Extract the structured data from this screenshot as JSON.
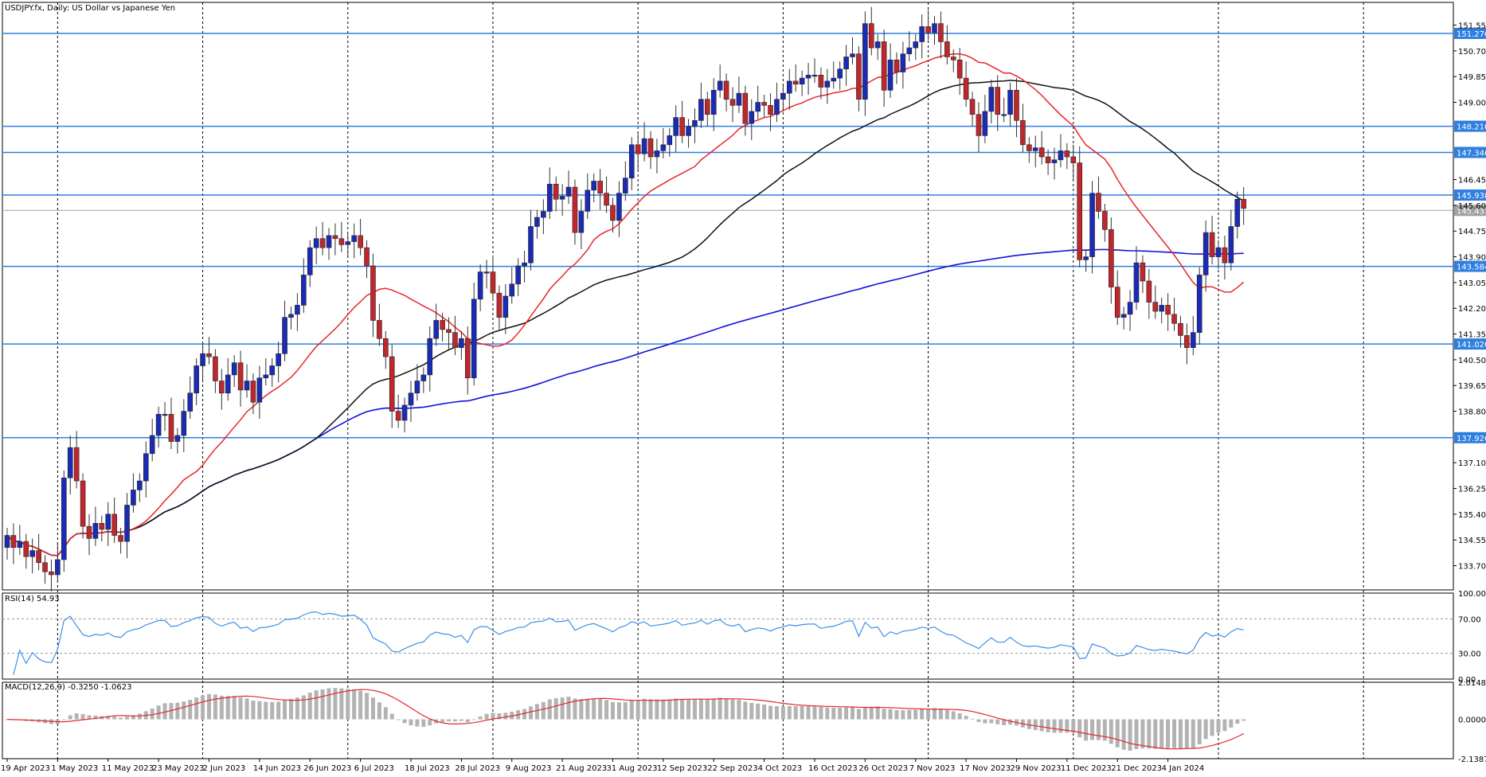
{
  "header": {
    "symbol_line": "USDJPY.fx, Daily:  US Dollar vs Japanese Yen"
  },
  "chart_data": {
    "type": "candlestick",
    "symbol": "USDJPY.fx",
    "timeframe": "Daily",
    "description": "US Dollar vs Japanese Yen",
    "price_axis": {
      "ylim": [
        132.9,
        152.3
      ],
      "ticks": [
        "151.550",
        "150.700",
        "149.850",
        "149.000",
        "146.450",
        "145.600",
        "144.750",
        "143.900",
        "143.050",
        "142.200",
        "141.350",
        "140.500",
        "139.650",
        "138.800",
        "137.100",
        "136.250",
        "135.400",
        "134.550",
        "133.700"
      ]
    },
    "x_axis": {
      "ticks": [
        {
          "label": "19 Apr 2023",
          "index": 0
        },
        {
          "label": "1 May 2023",
          "index": 8
        },
        {
          "label": "11 May 2023",
          "index": 16
        },
        {
          "label": "23 May 2023",
          "index": 24
        },
        {
          "label": "2 Jun 2023",
          "index": 32
        },
        {
          "label": "14 Jun 2023",
          "index": 40
        },
        {
          "label": "26 Jun 2023",
          "index": 48
        },
        {
          "label": "6 Jul 2023",
          "index": 56
        },
        {
          "label": "18 Jul 2023",
          "index": 64
        },
        {
          "label": "28 Jul 2023",
          "index": 72
        },
        {
          "label": "9 Aug 2023",
          "index": 80
        },
        {
          "label": "21 Aug 2023",
          "index": 88
        },
        {
          "label": "31 Aug 2023",
          "index": 96
        },
        {
          "label": "12 Sep 2023",
          "index": 104
        },
        {
          "label": "22 Sep 2023",
          "index": 112
        },
        {
          "label": "4 Oct 2023",
          "index": 120
        },
        {
          "label": "16 Oct 2023",
          "index": 128
        },
        {
          "label": "26 Oct 2023",
          "index": 136
        },
        {
          "label": "7 Nov 2023",
          "index": 144
        },
        {
          "label": "17 Nov 2023",
          "index": 152
        },
        {
          "label": "29 Nov 2023",
          "index": 160
        },
        {
          "label": "11 Dec 2023",
          "index": 168
        },
        {
          "label": "21 Dec 2023",
          "index": 176
        },
        {
          "label": "4 Jan 2024",
          "index": 184
        }
      ],
      "vertical_grid_index": [
        8,
        31,
        54,
        77,
        100,
        123,
        146,
        169,
        192,
        215
      ],
      "total_slots": 230
    },
    "current_price": {
      "label": "145.431",
      "value": 145.431,
      "color": "#a0a0a0"
    },
    "horizontal_levels": [
      {
        "label": "151.276",
        "value": 151.276
      },
      {
        "label": "148.210",
        "value": 148.21
      },
      {
        "label": "147.346",
        "value": 147.346
      },
      {
        "label": "145.938",
        "value": 145.938
      },
      {
        "label": "143.584",
        "value": 143.584
      },
      {
        "label": "141.020",
        "value": 141.02
      },
      {
        "label": "137.926",
        "value": 137.926
      }
    ],
    "candles_close": [
      134.7,
      134.3,
      134.5,
      134.0,
      134.2,
      133.8,
      133.5,
      133.4,
      133.9,
      136.6,
      137.6,
      136.5,
      135.0,
      134.6,
      135.1,
      134.9,
      135.4,
      134.7,
      134.5,
      135.7,
      136.2,
      136.5,
      137.4,
      138.0,
      138.7,
      138.7,
      137.8,
      138.0,
      138.8,
      139.4,
      140.3,
      140.7,
      140.6,
      139.8,
      139.4,
      140.0,
      140.4,
      139.5,
      139.8,
      139.1,
      139.9,
      140.0,
      140.3,
      140.7,
      141.9,
      142.0,
      142.3,
      143.3,
      144.2,
      144.5,
      144.2,
      144.6,
      144.5,
      144.3,
      144.4,
      144.6,
      144.2,
      143.6,
      141.8,
      141.2,
      140.6,
      138.8,
      138.5,
      139.0,
      139.4,
      139.8,
      140.0,
      141.2,
      141.8,
      141.5,
      141.4,
      140.9,
      141.2,
      139.9,
      142.5,
      143.4,
      143.4,
      142.7,
      141.9,
      142.6,
      143.0,
      143.6,
      143.7,
      144.9,
      145.2,
      145.4,
      146.3,
      145.8,
      145.9,
      146.2,
      144.7,
      145.4,
      146.1,
      146.4,
      146.0,
      145.6,
      145.1,
      146.0,
      146.5,
      147.6,
      147.3,
      147.8,
      147.2,
      147.4,
      147.6,
      147.9,
      148.5,
      147.9,
      148.2,
      148.4,
      149.1,
      148.6,
      149.4,
      149.7,
      149.1,
      148.9,
      149.3,
      148.3,
      148.7,
      149.0,
      148.9,
      148.6,
      149.1,
      149.3,
      149.7,
      149.6,
      149.8,
      149.9,
      149.9,
      149.5,
      149.7,
      149.8,
      150.1,
      150.5,
      150.6,
      149.1,
      151.6,
      150.8,
      151.0,
      149.4,
      150.4,
      150.0,
      150.6,
      150.8,
      151.0,
      151.5,
      151.3,
      151.6,
      151.0,
      150.5,
      150.4,
      149.8,
      149.1,
      148.6,
      147.9,
      148.7,
      149.5,
      148.6,
      148.6,
      149.4,
      148.4,
      147.6,
      147.4,
      147.5,
      147.2,
      147.0,
      147.1,
      147.4,
      147.2,
      147.0,
      143.8,
      143.9,
      146.0,
      145.4,
      144.8,
      142.9,
      141.9,
      142.0,
      142.4,
      143.7,
      143.1,
      142.4,
      142.1,
      142.3,
      142.0,
      141.7,
      141.3,
      140.9,
      141.4,
      143.3,
      144.7,
      143.9,
      144.2,
      143.7,
      144.9,
      145.8,
      145.5
    ],
    "candles_open": [
      134.3,
      134.7,
      134.3,
      134.5,
      134.0,
      134.2,
      133.8,
      133.5,
      133.4,
      133.9,
      136.6,
      137.6,
      136.5,
      135.0,
      134.6,
      135.1,
      134.9,
      135.4,
      134.7,
      134.5,
      135.7,
      136.2,
      136.5,
      137.4,
      138.0,
      138.7,
      138.7,
      137.8,
      138.0,
      138.8,
      139.4,
      140.3,
      140.7,
      140.6,
      139.8,
      139.4,
      140.0,
      140.4,
      139.5,
      139.8,
      139.1,
      139.9,
      140.0,
      140.3,
      140.7,
      141.9,
      142.0,
      142.3,
      143.3,
      144.2,
      144.5,
      144.2,
      144.6,
      144.5,
      144.3,
      144.4,
      144.6,
      144.2,
      143.6,
      141.8,
      141.2,
      140.6,
      138.8,
      138.5,
      139.0,
      139.4,
      139.8,
      140.0,
      141.2,
      141.8,
      141.5,
      141.4,
      140.9,
      141.2,
      139.9,
      142.5,
      143.4,
      143.4,
      142.7,
      141.9,
      142.6,
      143.0,
      143.6,
      143.7,
      144.9,
      145.2,
      145.4,
      146.3,
      145.8,
      145.9,
      146.2,
      144.7,
      145.4,
      146.1,
      146.4,
      146.0,
      145.6,
      145.1,
      146.0,
      146.5,
      147.6,
      147.3,
      147.8,
      147.2,
      147.4,
      147.6,
      147.9,
      148.5,
      147.9,
      148.2,
      148.4,
      149.1,
      148.6,
      149.4,
      149.7,
      149.1,
      148.9,
      149.3,
      148.3,
      148.7,
      149.0,
      148.9,
      148.6,
      149.1,
      149.3,
      149.7,
      149.6,
      149.8,
      149.9,
      149.9,
      149.5,
      149.7,
      149.8,
      150.1,
      150.5,
      150.6,
      149.1,
      151.6,
      150.8,
      151.0,
      149.4,
      150.4,
      150.0,
      150.6,
      150.8,
      151.0,
      151.5,
      151.3,
      151.6,
      151.0,
      150.5,
      150.4,
      149.8,
      149.1,
      148.6,
      147.9,
      148.7,
      149.5,
      148.6,
      148.6,
      149.4,
      148.4,
      147.6,
      147.4,
      147.5,
      147.2,
      147.0,
      147.1,
      147.4,
      147.2,
      147.0,
      143.8,
      143.9,
      146.0,
      145.4,
      144.8,
      142.9,
      141.9,
      142.0,
      142.4,
      143.7,
      143.1,
      142.4,
      142.1,
      142.3,
      142.0,
      141.7,
      141.3,
      140.9,
      141.4,
      143.3,
      144.7,
      143.9,
      144.2,
      143.7,
      144.9,
      145.8
    ],
    "ma_red_label": "red moving average",
    "indicators": {
      "rsi": {
        "label": "RSI(14) 54.93",
        "levels": [
          "100.00",
          "70.00",
          "30.00",
          "0.00"
        ],
        "ylim": [
          0,
          100
        ],
        "current": 54.93
      },
      "macd": {
        "label": "MACD(12,26,9) -0.3250 -1.0623",
        "ticks": [
          "2.0148",
          "0.0000",
          "-2.1387"
        ],
        "ylim": [
          -2.1387,
          2.0148
        ],
        "macd": -0.325,
        "signal": -1.0623
      }
    }
  },
  "colors": {
    "bull": "#1b2bb5",
    "bear": "#c0272d",
    "ma_fast": "#e8262b",
    "ma_mid": "#111111",
    "ma_slow": "#1212d8",
    "level": "#2f7fe0",
    "rsi_line": "#3d8fe6",
    "macd_hist": "#b3b3b3",
    "macd_signal": "#e8262b"
  }
}
